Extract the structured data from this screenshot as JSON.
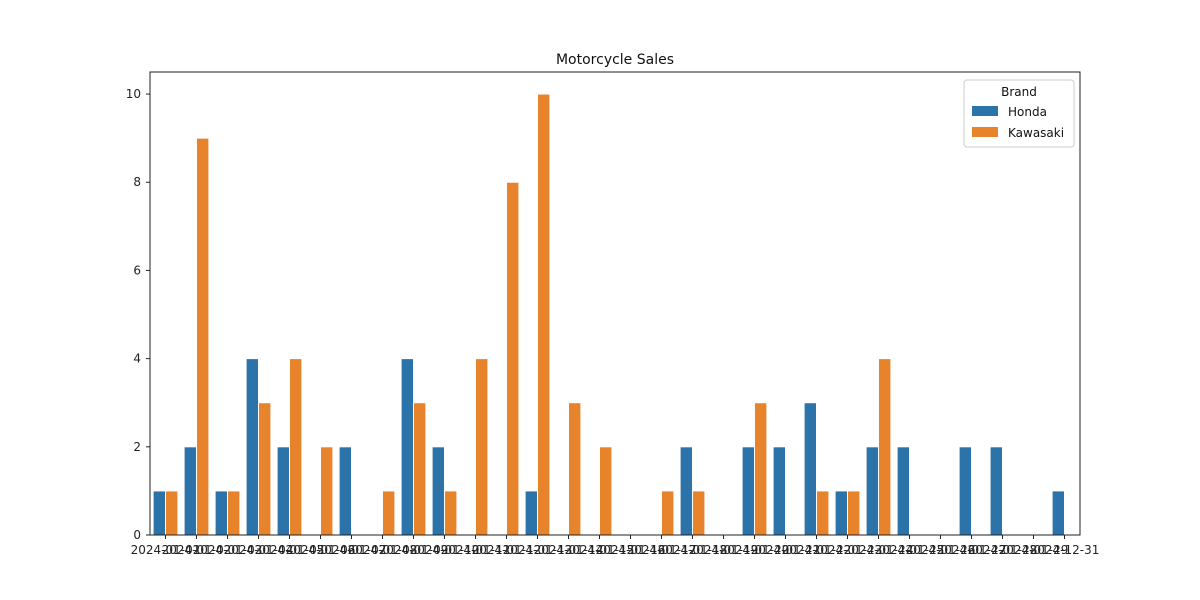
{
  "chart_data": {
    "type": "bar",
    "title": "Motorcycle Sales",
    "xlabel": "",
    "ylabel": "",
    "ylim": [
      0,
      10.5
    ],
    "yticks": [
      0,
      2,
      4,
      6,
      8,
      10
    ],
    "categories": [
      "2024-01-01",
      "2024-01-02",
      "2024-01-03",
      "2024-01-04",
      "2024-01-05",
      "2024-01-06",
      "2024-01-07",
      "2024-01-08",
      "2024-01-09",
      "2024-01-10",
      "2024-01-11",
      "2024-01-12",
      "2024-01-13",
      "2024-01-14",
      "2024-01-15",
      "2024-01-16",
      "2024-01-17",
      "2024-01-18",
      "2024-01-19",
      "2024-01-20",
      "2024-01-21",
      "2024-01-22",
      "2024-01-23",
      "2024-01-24",
      "2024-01-25",
      "2024-01-26",
      "2024-01-27",
      "2024-01-28",
      "2024-01-29",
      "2024-12-31"
    ],
    "series": [
      {
        "name": "Honda",
        "color": "#2b73a9",
        "values": [
          1,
          2,
          1,
          4,
          2,
          0,
          2,
          0,
          4,
          2,
          0,
          0,
          1,
          0,
          0,
          0,
          0,
          2,
          0,
          2,
          2,
          3,
          1,
          2,
          2,
          0,
          2,
          2,
          0,
          1
        ]
      },
      {
        "name": "Kawasaki",
        "color": "#e6832b",
        "values": [
          1,
          9,
          1,
          3,
          4,
          2,
          0,
          1,
          3,
          1,
          4,
          8,
          10,
          3,
          2,
          0,
          1,
          1,
          0,
          3,
          0,
          1,
          1,
          4,
          0,
          0,
          0,
          0,
          0,
          0
        ]
      }
    ],
    "legend": {
      "title": "Brand",
      "position": "top-right"
    },
    "grid": false
  }
}
